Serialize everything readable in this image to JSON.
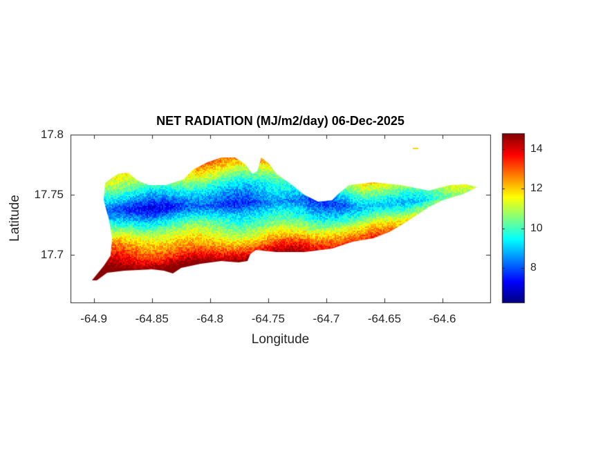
{
  "chart_data": {
    "type": "heatmap",
    "title": "NET RADIATION (MJ/m2/day) 06-Dec-2025",
    "xlabel": "Longitude",
    "ylabel": "Latitude",
    "xlim": [
      -64.92,
      -64.559
    ],
    "ylim": [
      17.66,
      17.8
    ],
    "xticks": [
      -64.9,
      -64.85,
      -64.8,
      -64.75,
      -64.7,
      -64.65,
      -64.6
    ],
    "xtick_labels": [
      "-64.9",
      "-64.85",
      "-64.8",
      "-64.75",
      "-64.7",
      "-64.65",
      "-64.6"
    ],
    "yticks": [
      17.7,
      17.75,
      17.8
    ],
    "ytick_labels": [
      "17.7",
      "17.75",
      "17.8"
    ],
    "colorbar": {
      "colormap": "jet",
      "clim": [
        6.25,
        14.8
      ],
      "ticks": [
        8,
        10,
        12,
        14
      ],
      "tick_labels": [
        "8",
        "10",
        "12",
        "14"
      ],
      "placement": "right"
    },
    "value_summary": {
      "central_band_min": 7.5,
      "north_coast": 11.5,
      "south_coast": 14,
      "east_end": 12
    },
    "grid": false
  }
}
